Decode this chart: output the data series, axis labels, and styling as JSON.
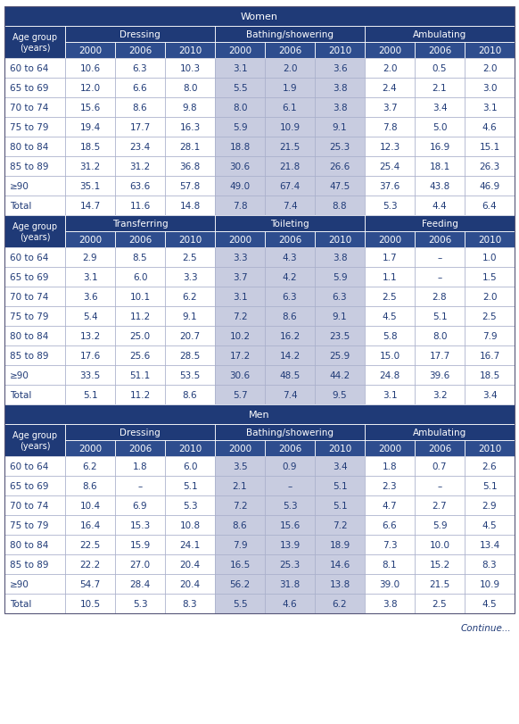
{
  "dark_blue": "#1f3a77",
  "medium_blue": "#2e4d8e",
  "light_purple": "#c8cce0",
  "white": "#ffffff",
  "text_blue": "#1f3a77",
  "continue_text": "Continue...",
  "sections": [
    {
      "section_header": "Women",
      "subsections": [
        {
          "col_groups": [
            "Dressing",
            "Bathing/showering",
            "Ambulating"
          ],
          "years": [
            "2000",
            "2006",
            "2010"
          ],
          "rows": [
            {
              "label": "60 to 64",
              "values": [
                "10.6",
                "6.3",
                "10.3",
                "3.1",
                "2.0",
                "3.6",
                "2.0",
                "0.5",
                "2.0"
              ]
            },
            {
              "label": "65 to 69",
              "values": [
                "12.0",
                "6.6",
                "8.0",
                "5.5",
                "1.9",
                "3.8",
                "2.4",
                "2.1",
                "3.0"
              ]
            },
            {
              "label": "70 to 74",
              "values": [
                "15.6",
                "8.6",
                "9.8",
                "8.0",
                "6.1",
                "3.8",
                "3.7",
                "3.4",
                "3.1"
              ]
            },
            {
              "label": "75 to 79",
              "values": [
                "19.4",
                "17.7",
                "16.3",
                "5.9",
                "10.9",
                "9.1",
                "7.8",
                "5.0",
                "4.6"
              ]
            },
            {
              "label": "80 to 84",
              "values": [
                "18.5",
                "23.4",
                "28.1",
                "18.8",
                "21.5",
                "25.3",
                "12.3",
                "16.9",
                "15.1"
              ]
            },
            {
              "label": "85 to 89",
              "values": [
                "31.2",
                "31.2",
                "36.8",
                "30.6",
                "21.8",
                "26.6",
                "25.4",
                "18.1",
                "26.3"
              ]
            },
            {
              "label": "≥90",
              "values": [
                "35.1",
                "63.6",
                "57.8",
                "49.0",
                "67.4",
                "47.5",
                "37.6",
                "43.8",
                "46.9"
              ]
            },
            {
              "label": "Total",
              "values": [
                "14.7",
                "11.6",
                "14.8",
                "7.8",
                "7.4",
                "8.8",
                "5.3",
                "4.4",
                "6.4"
              ]
            }
          ]
        },
        {
          "col_groups": [
            "Transferring",
            "Toileting",
            "Feeding"
          ],
          "years": [
            "2000",
            "2006",
            "2010"
          ],
          "rows": [
            {
              "label": "60 to 64",
              "values": [
                "2.9",
                "8.5",
                "2.5",
                "3.3",
                "4.3",
                "3.8",
                "1.7",
                "–",
                "1.0"
              ]
            },
            {
              "label": "65 to 69",
              "values": [
                "3.1",
                "6.0",
                "3.3",
                "3.7",
                "4.2",
                "5.9",
                "1.1",
                "–",
                "1.5"
              ]
            },
            {
              "label": "70 to 74",
              "values": [
                "3.6",
                "10.1",
                "6.2",
                "3.1",
                "6.3",
                "6.3",
                "2.5",
                "2.8",
                "2.0"
              ]
            },
            {
              "label": "75 to 79",
              "values": [
                "5.4",
                "11.2",
                "9.1",
                "7.2",
                "8.6",
                "9.1",
                "4.5",
                "5.1",
                "2.5"
              ]
            },
            {
              "label": "80 to 84",
              "values": [
                "13.2",
                "25.0",
                "20.7",
                "10.2",
                "16.2",
                "23.5",
                "5.8",
                "8.0",
                "7.9"
              ]
            },
            {
              "label": "85 to 89",
              "values": [
                "17.6",
                "25.6",
                "28.5",
                "17.2",
                "14.2",
                "25.9",
                "15.0",
                "17.7",
                "16.7"
              ]
            },
            {
              "label": "≥90",
              "values": [
                "33.5",
                "51.1",
                "53.5",
                "30.6",
                "48.5",
                "44.2",
                "24.8",
                "39.6",
                "18.5"
              ]
            },
            {
              "label": "Total",
              "values": [
                "5.1",
                "11.2",
                "8.6",
                "5.7",
                "7.4",
                "9.5",
                "3.1",
                "3.2",
                "3.4"
              ]
            }
          ]
        }
      ]
    },
    {
      "section_header": "Men",
      "subsections": [
        {
          "col_groups": [
            "Dressing",
            "Bathing/showering",
            "Ambulating"
          ],
          "years": [
            "2000",
            "2006",
            "2010"
          ],
          "rows": [
            {
              "label": "60 to 64",
              "values": [
                "6.2",
                "1.8",
                "6.0",
                "3.5",
                "0.9",
                "3.4",
                "1.8",
                "0.7",
                "2.6"
              ]
            },
            {
              "label": "65 to 69",
              "values": [
                "8.6",
                "–",
                "5.1",
                "2.1",
                "–",
                "5.1",
                "2.3",
                "–",
                "5.1"
              ]
            },
            {
              "label": "70 to 74",
              "values": [
                "10.4",
                "6.9",
                "5.3",
                "7.2",
                "5.3",
                "5.1",
                "4.7",
                "2.7",
                "2.9"
              ]
            },
            {
              "label": "75 to 79",
              "values": [
                "16.4",
                "15.3",
                "10.8",
                "8.6",
                "15.6",
                "7.2",
                "6.6",
                "5.9",
                "4.5"
              ]
            },
            {
              "label": "80 to 84",
              "values": [
                "22.5",
                "15.9",
                "24.1",
                "7.9",
                "13.9",
                "18.9",
                "7.3",
                "10.0",
                "13.4"
              ]
            },
            {
              "label": "85 to 89",
              "values": [
                "22.2",
                "27.0",
                "20.4",
                "16.5",
                "25.3",
                "14.6",
                "8.1",
                "15.2",
                "8.3"
              ]
            },
            {
              "label": "≥90",
              "values": [
                "54.7",
                "28.4",
                "20.4",
                "56.2",
                "31.8",
                "13.8",
                "39.0",
                "21.5",
                "10.9"
              ]
            },
            {
              "label": "Total",
              "values": [
                "10.5",
                "5.3",
                "8.3",
                "5.5",
                "4.6",
                "6.2",
                "3.8",
                "2.5",
                "4.5"
              ]
            }
          ]
        }
      ]
    }
  ]
}
